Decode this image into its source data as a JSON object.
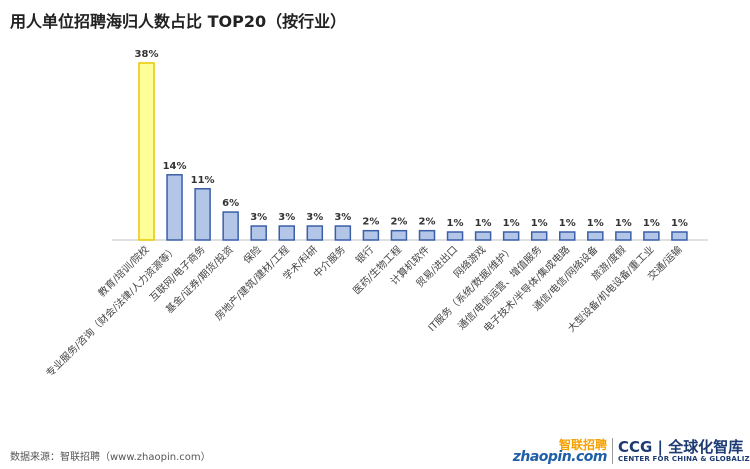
{
  "title": "用人单位招聘海归人数占比 TOP20（按行业）",
  "source": "数据来源：智联招聘（www.zhaopin.com）",
  "logos": {
    "zhaopin_cn": "智联招聘",
    "zhaopin_en": "zhaopin.com",
    "ccg_main": "CCG | 全球化智库",
    "ccg_sub": "CENTER FOR CHINA & GLOBALIZATION"
  },
  "colors": {
    "bar": "#b4c6e7",
    "bar_stroke": "#3a5fa8",
    "highlight": "#ffff99",
    "highlight_stroke": "#e8c700",
    "axis": "#bfbfbf"
  },
  "chart_data": {
    "type": "bar",
    "title": "用人单位招聘海归人数占比 TOP20（按行业）",
    "categories": [
      "教育/培训/院校",
      "专业服务/咨询（财会/法律/人力资源等）",
      "互联网/电子商务",
      "基金/证券/期货/投资",
      "保险",
      "房地产/建筑/建材/工程",
      "学术/科研",
      "中介服务",
      "银行",
      "医药/生物工程",
      "计算机软件",
      "贸易/进出口",
      "网络游戏",
      "IT服务（系统/数据/维护）",
      "通信/电信运营、增值服务",
      "电子技术/半导体/集成电路",
      "通信/电信/网络设备",
      "旅游/度假",
      "大型设备/机电设备/重工业",
      "交通/运输"
    ],
    "values": [
      38,
      14,
      11,
      6,
      3,
      3,
      3,
      3,
      2,
      2,
      2,
      1,
      1,
      1,
      1,
      1,
      1,
      1,
      1,
      1
    ],
    "labels": [
      "38%",
      "14%",
      "11%",
      "6%",
      "3%",
      "3%",
      "3%",
      "3%",
      "2%",
      "2%",
      "2%",
      "1%",
      "1%",
      "1%",
      "1%",
      "1%",
      "1%",
      "1%",
      "1%",
      "1%"
    ],
    "highlight_index": 0,
    "unit": "%",
    "ylim": [
      0,
      38
    ],
    "grid": false,
    "legend": "none"
  }
}
